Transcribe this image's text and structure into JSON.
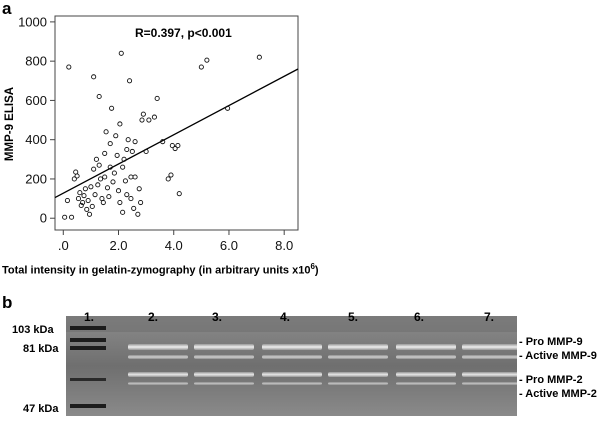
{
  "panel_a": {
    "letter": "a",
    "ylabel": "MMP-9 ELISA",
    "xlabel_main": "Total intensity in gelatin-zymography (in arbitrary units x10",
    "xlabel_sup": "6",
    "xlabel_end": ")",
    "annotation": "R=0.397, p<0.001",
    "x_tick_labels": [
      ".0",
      "2.0",
      "4.0",
      "6.0",
      "8.0"
    ],
    "y_tick_labels": [
      "0",
      "200",
      "400",
      "600",
      "800",
      "1000"
    ]
  },
  "chart_data": {
    "type": "scatter",
    "title": "",
    "xlabel": "Total intensity in gelatin-zymography (in arbitrary units x10^6)",
    "ylabel": "MMP-9 ELISA",
    "xlim": [
      -0.3,
      8.5
    ],
    "ylim": [
      -60,
      1030
    ],
    "x_ticks": [
      0,
      2,
      4,
      6,
      8
    ],
    "y_ticks": [
      0,
      200,
      400,
      600,
      800,
      1000
    ],
    "grid": false,
    "annotation": "R=0.397, p<0.001",
    "fit_line": {
      "x": [
        -0.3,
        8.5
      ],
      "y": [
        105,
        760
      ]
    },
    "points": [
      [
        0.05,
        5
      ],
      [
        0.3,
        5
      ],
      [
        0.15,
        90
      ],
      [
        0.2,
        770
      ],
      [
        0.4,
        200
      ],
      [
        0.45,
        235
      ],
      [
        0.5,
        215
      ],
      [
        0.55,
        100
      ],
      [
        0.6,
        130
      ],
      [
        0.65,
        65
      ],
      [
        0.7,
        80
      ],
      [
        0.75,
        115
      ],
      [
        0.8,
        150
      ],
      [
        0.85,
        45
      ],
      [
        0.9,
        90
      ],
      [
        0.95,
        20
      ],
      [
        1.0,
        160
      ],
      [
        1.05,
        60
      ],
      [
        1.1,
        720
      ],
      [
        1.1,
        250
      ],
      [
        1.15,
        120
      ],
      [
        1.2,
        300
      ],
      [
        1.25,
        170
      ],
      [
        1.3,
        270
      ],
      [
        1.3,
        620
      ],
      [
        1.35,
        200
      ],
      [
        1.4,
        100
      ],
      [
        1.45,
        80
      ],
      [
        1.5,
        330
      ],
      [
        1.5,
        210
      ],
      [
        1.55,
        440
      ],
      [
        1.6,
        155
      ],
      [
        1.65,
        110
      ],
      [
        1.7,
        260
      ],
      [
        1.7,
        380
      ],
      [
        1.75,
        560
      ],
      [
        1.8,
        185
      ],
      [
        1.85,
        230
      ],
      [
        1.9,
        420
      ],
      [
        1.95,
        320
      ],
      [
        2.0,
        140
      ],
      [
        2.05,
        80
      ],
      [
        2.05,
        480
      ],
      [
        2.1,
        840
      ],
      [
        2.15,
        260
      ],
      [
        2.15,
        30
      ],
      [
        2.2,
        300
      ],
      [
        2.25,
        190
      ],
      [
        2.3,
        350
      ],
      [
        2.3,
        120
      ],
      [
        2.35,
        400
      ],
      [
        2.4,
        700
      ],
      [
        2.45,
        210
      ],
      [
        2.45,
        100
      ],
      [
        2.5,
        340
      ],
      [
        2.55,
        50
      ],
      [
        2.6,
        210
      ],
      [
        2.6,
        390
      ],
      [
        2.7,
        20
      ],
      [
        2.75,
        150
      ],
      [
        2.8,
        80
      ],
      [
        2.85,
        500
      ],
      [
        2.9,
        530
      ],
      [
        3.0,
        340
      ],
      [
        3.1,
        500
      ],
      [
        3.3,
        515
      ],
      [
        3.4,
        610
      ],
      [
        3.6,
        390
      ],
      [
        3.8,
        200
      ],
      [
        3.9,
        220
      ],
      [
        3.95,
        370
      ],
      [
        4.05,
        355
      ],
      [
        4.15,
        370
      ],
      [
        4.2,
        125
      ],
      [
        5.0,
        770
      ],
      [
        5.2,
        805
      ],
      [
        5.95,
        560
      ],
      [
        7.1,
        820
      ]
    ]
  },
  "panel_b": {
    "letter": "b",
    "kda_labels": [
      "103 kDa",
      "81 kDa",
      "47 kDa"
    ],
    "lane_labels": [
      "1.",
      "2.",
      "3.",
      "4.",
      "5.",
      "6.",
      "7."
    ],
    "band_labels": [
      "- Pro MMP-9",
      "- Active MMP-9",
      "- Pro MMP-2",
      "- Active MMP-2"
    ]
  }
}
